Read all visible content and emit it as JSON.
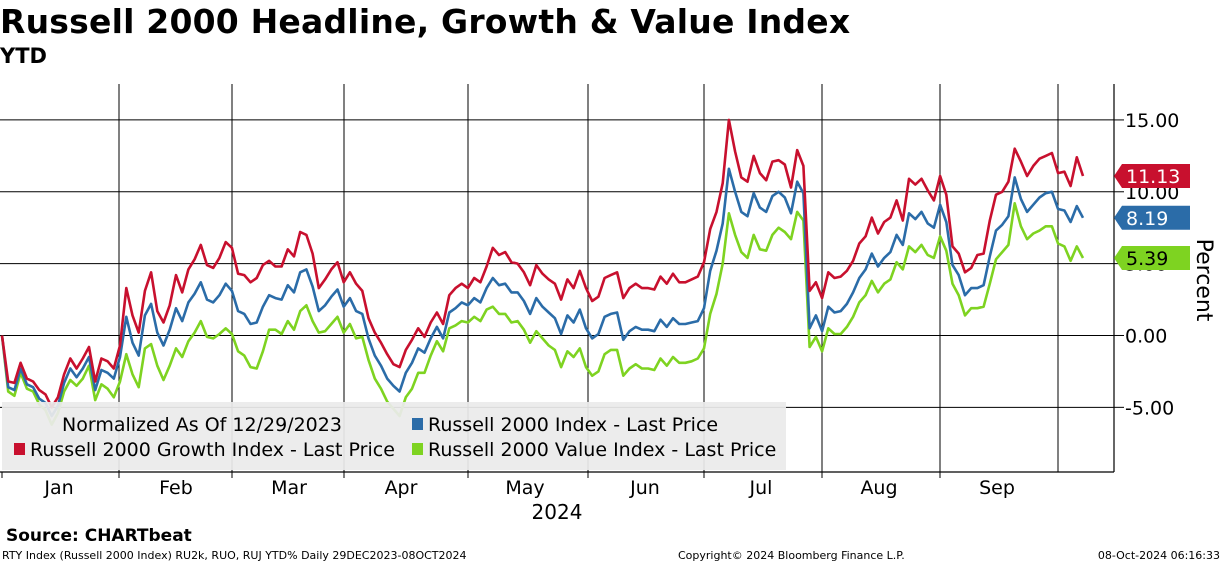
{
  "title": "Russell 2000 Headline, Growth & Value Index",
  "subtitle": "YTD",
  "source": "Source: CHARTbeat",
  "footer": {
    "left": "RTY Index (Russell 2000 Index) RU2k, RUO, RUJ YTD%  Daily 29DEC2023-08OCT2024",
    "center": "Copyright© 2024 Bloomberg Finance L.P.",
    "right": "08-Oct-2024 06:16:33"
  },
  "chart_data": {
    "type": "line",
    "ylabel": "Percent",
    "xlabel": "2024",
    "ylim": [
      -9.5,
      17.5
    ],
    "yticks": [
      -5,
      0,
      5,
      10,
      15
    ],
    "ytick_labels": [
      "-5.00",
      "0.00",
      "5.00",
      "10.00",
      "15.00"
    ],
    "months": [
      "Jan",
      "Feb",
      "Mar",
      "Apr",
      "May",
      "Jun",
      "Jul",
      "Aug",
      "Sep"
    ],
    "legend": {
      "note": "Normalized As Of 12/29/2023",
      "position": "bottom-left"
    },
    "x_start": "2023-12-29",
    "x_end": "2024-10-08",
    "series": [
      {
        "name": "Russell 2000 Growth Index - Last Price",
        "color": "#c8102e",
        "last_label": "11.13",
        "values": [
          0,
          -3.2,
          -3.3,
          -1.9,
          -3.0,
          -3.2,
          -3.8,
          -4.1,
          -5.0,
          -4.3,
          -2.7,
          -1.6,
          -2.3,
          -1.6,
          -0.8,
          -3.2,
          -1.6,
          -1.8,
          -2.3,
          -0.7,
          3.3,
          1.4,
          0.2,
          3.1,
          4.4,
          1.7,
          0.9,
          2.1,
          4.2,
          3.0,
          4.6,
          5.3,
          6.3,
          4.9,
          4.7,
          5.4,
          6.5,
          6.1,
          4.3,
          4.2,
          3.7,
          4.0,
          4.9,
          5.2,
          4.8,
          4.8,
          6.0,
          5.5,
          7.2,
          7.0,
          5.7,
          3.3,
          3.9,
          4.6,
          5.1,
          3.7,
          4.4,
          3.6,
          3.1,
          1.2,
          0.2,
          -0.5,
          -1.3,
          -2.0,
          -2.2,
          -1.0,
          -0.3,
          0.5,
          -0.1,
          0.9,
          1.6,
          0.8,
          2.8,
          3.3,
          3.6,
          3.3,
          4.0,
          3.7,
          4.8,
          6.1,
          5.6,
          5.8,
          5.1,
          5.0,
          4.4,
          3.5,
          4.9,
          4.3,
          3.9,
          3.6,
          2.5,
          3.9,
          3.3,
          4.5,
          3.3,
          2.4,
          2.7,
          4.0,
          4.2,
          4.4,
          2.6,
          3.3,
          3.6,
          3.3,
          3.3,
          3.2,
          4.1,
          3.6,
          4.3,
          3.7,
          3.7,
          3.9,
          4.1,
          5.1,
          7.4,
          8.6,
          10.6,
          15.0,
          12.8,
          11.0,
          10.7,
          12.5,
          11.3,
          10.8,
          12.1,
          12.2,
          11.9,
          10.3,
          12.9,
          11.8,
          3.1,
          3.7,
          2.6,
          4.4,
          4.0,
          4.1,
          4.5,
          5.2,
          6.4,
          6.9,
          8.2,
          7.1,
          7.9,
          8.2,
          9.4,
          8.0,
          10.9,
          10.5,
          10.9,
          10.1,
          9.4,
          11.1,
          9.8,
          6.2,
          5.7,
          4.4,
          4.7,
          5.6,
          5.7,
          8.0,
          9.8,
          10.0,
          10.7,
          13.0,
          12.1,
          11.1,
          11.8,
          12.3,
          12.5,
          12.7,
          11.3,
          11.4,
          10.4,
          12.4,
          11.1
        ]
      },
      {
        "name": "Russell 2000 Index - Last Price",
        "color": "#2b6ca8",
        "last_label": "8.19",
        "values": [
          0,
          -3.6,
          -3.8,
          -2.3,
          -3.4,
          -3.6,
          -4.4,
          -4.7,
          -5.6,
          -4.9,
          -3.3,
          -2.3,
          -2.9,
          -2.3,
          -1.5,
          -3.8,
          -2.4,
          -2.6,
          -3.0,
          -1.5,
          1.3,
          -0.5,
          -1.4,
          1.4,
          2.2,
          0.2,
          -0.7,
          0.4,
          1.9,
          1.0,
          2.3,
          2.9,
          3.7,
          2.5,
          2.3,
          2.8,
          3.6,
          3.1,
          1.7,
          1.5,
          0.8,
          0.9,
          2.0,
          2.8,
          2.6,
          2.5,
          3.5,
          3.0,
          4.4,
          4.6,
          3.4,
          1.7,
          2.1,
          2.7,
          3.2,
          2.0,
          2.6,
          1.7,
          1.5,
          -0.2,
          -1.4,
          -2.1,
          -3.0,
          -3.5,
          -3.9,
          -2.6,
          -1.9,
          -0.9,
          -1.2,
          -0.2,
          0.6,
          -0.2,
          1.6,
          1.9,
          2.3,
          2.1,
          2.6,
          2.3,
          3.3,
          4.0,
          3.5,
          3.6,
          3.0,
          3.0,
          2.4,
          1.5,
          2.6,
          2.0,
          1.6,
          1.2,
          0.1,
          1.4,
          0.9,
          1.8,
          0.5,
          -0.2,
          0.1,
          1.3,
          1.5,
          1.6,
          -0.3,
          0.3,
          0.6,
          0.4,
          0.4,
          0.3,
          1.1,
          0.6,
          1.2,
          0.8,
          0.8,
          0.9,
          1.0,
          1.9,
          4.5,
          5.9,
          7.8,
          11.6,
          10.0,
          8.6,
          8.3,
          9.9,
          8.9,
          8.6,
          9.7,
          10.0,
          9.6,
          8.5,
          10.7,
          9.9,
          0.5,
          1.4,
          0.3,
          2.0,
          1.6,
          1.7,
          2.2,
          3.0,
          4.0,
          4.6,
          5.7,
          4.8,
          5.4,
          5.8,
          7.0,
          6.3,
          8.5,
          8.1,
          8.6,
          7.8,
          7.5,
          9.1,
          7.9,
          4.9,
          4.2,
          2.8,
          3.3,
          3.3,
          3.5,
          5.5,
          7.3,
          7.7,
          8.3,
          11.0,
          9.5,
          8.6,
          9.1,
          9.6,
          9.9,
          10.0,
          8.8,
          8.7,
          7.9,
          9.0,
          8.19
        ]
      },
      {
        "name": "Russell 2000 Value Index - Last Price",
        "color": "#7ed321",
        "last_label": "5.39",
        "values": [
          0,
          -3.9,
          -4.2,
          -2.6,
          -3.7,
          -3.9,
          -4.8,
          -5.2,
          -6.2,
          -5.4,
          -3.9,
          -3.1,
          -3.5,
          -3.0,
          -2.1,
          -4.5,
          -3.4,
          -3.7,
          -4.3,
          -3.2,
          -1.3,
          -2.7,
          -3.6,
          -0.9,
          -0.6,
          -2.1,
          -3.1,
          -2.1,
          -0.9,
          -1.5,
          -0.4,
          0.2,
          1.0,
          -0.1,
          -0.2,
          0.1,
          0.5,
          0.1,
          -1.1,
          -1.4,
          -2.2,
          -2.3,
          -1.1,
          0.4,
          0.4,
          0.1,
          1.0,
          0.4,
          1.7,
          2.1,
          1.0,
          0.2,
          0.3,
          0.8,
          1.3,
          0.2,
          0.8,
          -0.2,
          -0.1,
          -1.7,
          -3.0,
          -3.7,
          -4.6,
          -5.1,
          -5.6,
          -4.3,
          -3.7,
          -2.6,
          -2.6,
          -1.4,
          -0.4,
          -1.1,
          0.5,
          0.7,
          1.0,
          0.9,
          1.3,
          1.0,
          1.8,
          2.0,
          1.5,
          1.5,
          0.9,
          1.0,
          0.4,
          -0.5,
          0.3,
          -0.2,
          -0.7,
          -1.0,
          -2.2,
          -1.1,
          -1.5,
          -0.9,
          -2.2,
          -2.8,
          -2.5,
          -1.3,
          -1.0,
          -1.0,
          -2.8,
          -2.3,
          -2.0,
          -2.3,
          -2.3,
          -2.4,
          -1.6,
          -2.1,
          -1.5,
          -1.9,
          -1.9,
          -1.8,
          -1.6,
          -0.9,
          1.5,
          2.9,
          5.0,
          8.5,
          7.0,
          5.8,
          5.4,
          7.0,
          6.0,
          5.9,
          7.0,
          7.5,
          7.2,
          6.7,
          8.6,
          8.0,
          -0.8,
          -0.1,
          -1.1,
          0.5,
          0.1,
          0.1,
          0.6,
          1.3,
          2.3,
          2.8,
          3.8,
          3.0,
          3.6,
          3.9,
          5.1,
          4.6,
          6.2,
          5.8,
          6.3,
          5.6,
          5.4,
          6.9,
          5.9,
          3.6,
          2.8,
          1.4,
          1.9,
          1.9,
          2.0,
          3.6,
          5.3,
          5.8,
          6.3,
          9.2,
          7.6,
          6.7,
          7.1,
          7.3,
          7.6,
          7.6,
          6.4,
          6.2,
          5.2,
          6.2,
          5.39
        ]
      }
    ]
  }
}
